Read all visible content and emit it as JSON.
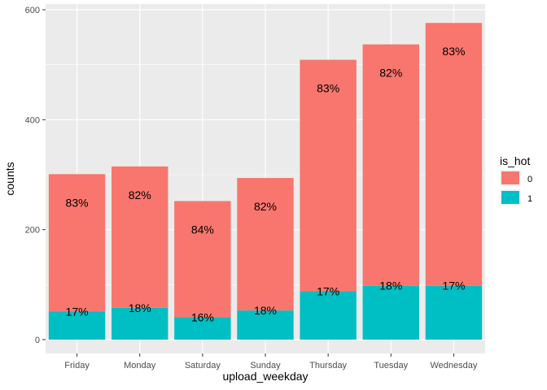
{
  "chart_data": {
    "type": "bar",
    "stacked": true,
    "categories": [
      "Friday",
      "Monday",
      "Saturday",
      "Sunday",
      "Thursday",
      "Tuesday",
      "Wednesday"
    ],
    "series": [
      {
        "name": "0",
        "color": "#F8766D",
        "values": [
          250,
          257,
          211,
          241,
          421,
          439,
          478
        ]
      },
      {
        "name": "1",
        "color": "#00BFC4",
        "values": [
          51,
          58,
          41,
          53,
          88,
          98,
          98
        ]
      }
    ],
    "labels_top": [
      "83%",
      "82%",
      "84%",
      "82%",
      "83%",
      "82%",
      "83%"
    ],
    "labels_bottom": [
      "17%",
      "18%",
      "16%",
      "18%",
      "17%",
      "18%",
      "17%"
    ],
    "xlabel": "upload_weekday",
    "ylabel": "counts",
    "ylim": [
      0,
      600
    ],
    "yticks": [
      0,
      200,
      400,
      600
    ],
    "legend_title": "is_hot",
    "legend_position": "right",
    "grid": true,
    "panel_color": "#EBEBEB"
  }
}
